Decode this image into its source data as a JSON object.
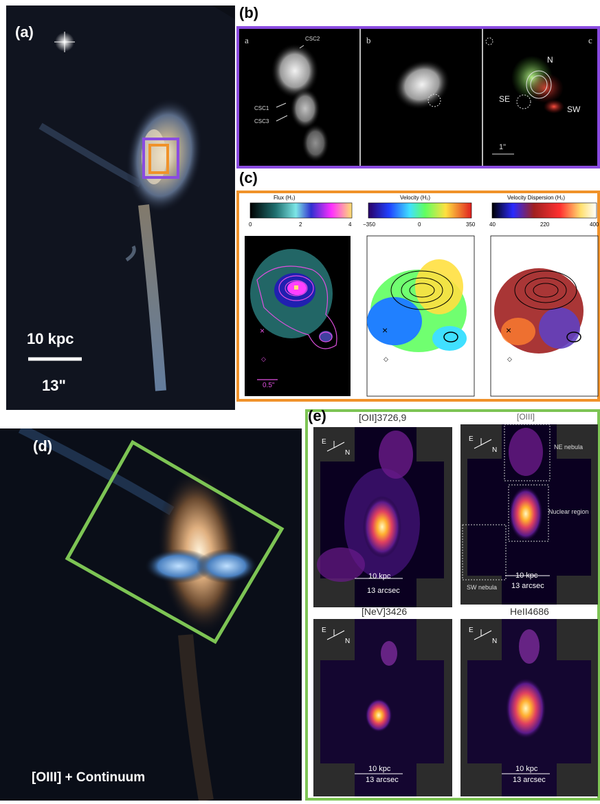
{
  "panel_a": {
    "letter": "(a)",
    "scale_kpc": "10 kpc",
    "scale_arcsec": "13\""
  },
  "panel_b": {
    "letter": "(b)",
    "sub_a": "a",
    "sub_b": "b",
    "sub_c": "c",
    "label_csc2": "CSC2",
    "label_csc1": "CSC1",
    "label_csc3": "CSC3",
    "label_n": "N",
    "label_se": "SE",
    "label_sw": "SW",
    "scale": "1\""
  },
  "panel_c": {
    "letter": "(c)",
    "maps": [
      {
        "title": "Flux (H₂)",
        "ticks": [
          "0",
          "2",
          "4"
        ]
      },
      {
        "title": "Velocity (H₂)",
        "ticks": [
          "−350",
          "0",
          "350"
        ]
      },
      {
        "title": "Velocity Dispersion (H₂)",
        "ticks": [
          "40",
          "220",
          "400"
        ]
      }
    ],
    "scale": "0.5\""
  },
  "panel_d": {
    "letter": "(d)",
    "caption": "[OIII] + Continuum"
  },
  "panel_e": {
    "letter": "(e)",
    "maps": [
      {
        "title": "[OII]3726,9",
        "scale_kpc": "10 kpc",
        "scale_arcsec": "13 arcsec"
      },
      {
        "title": "[OIII]",
        "scale_kpc": "10 kpc",
        "scale_arcsec": "13 arcsec"
      },
      {
        "title": "[NeV]3426",
        "scale_kpc": "10 kpc",
        "scale_arcsec": "13 arcsec"
      },
      {
        "title": "HeII4686",
        "scale_kpc": "10 kpc",
        "scale_arcsec": "13 arcsec"
      }
    ],
    "compass_e": "E",
    "compass_n": "N",
    "region_ne": "NE nebula",
    "region_nuclear": "Nuclear region",
    "region_sw": "SW nebula"
  },
  "colors": {
    "purple_box": "#8a4be0",
    "orange_box": "#f0922a",
    "green_box": "#7dc454"
  }
}
